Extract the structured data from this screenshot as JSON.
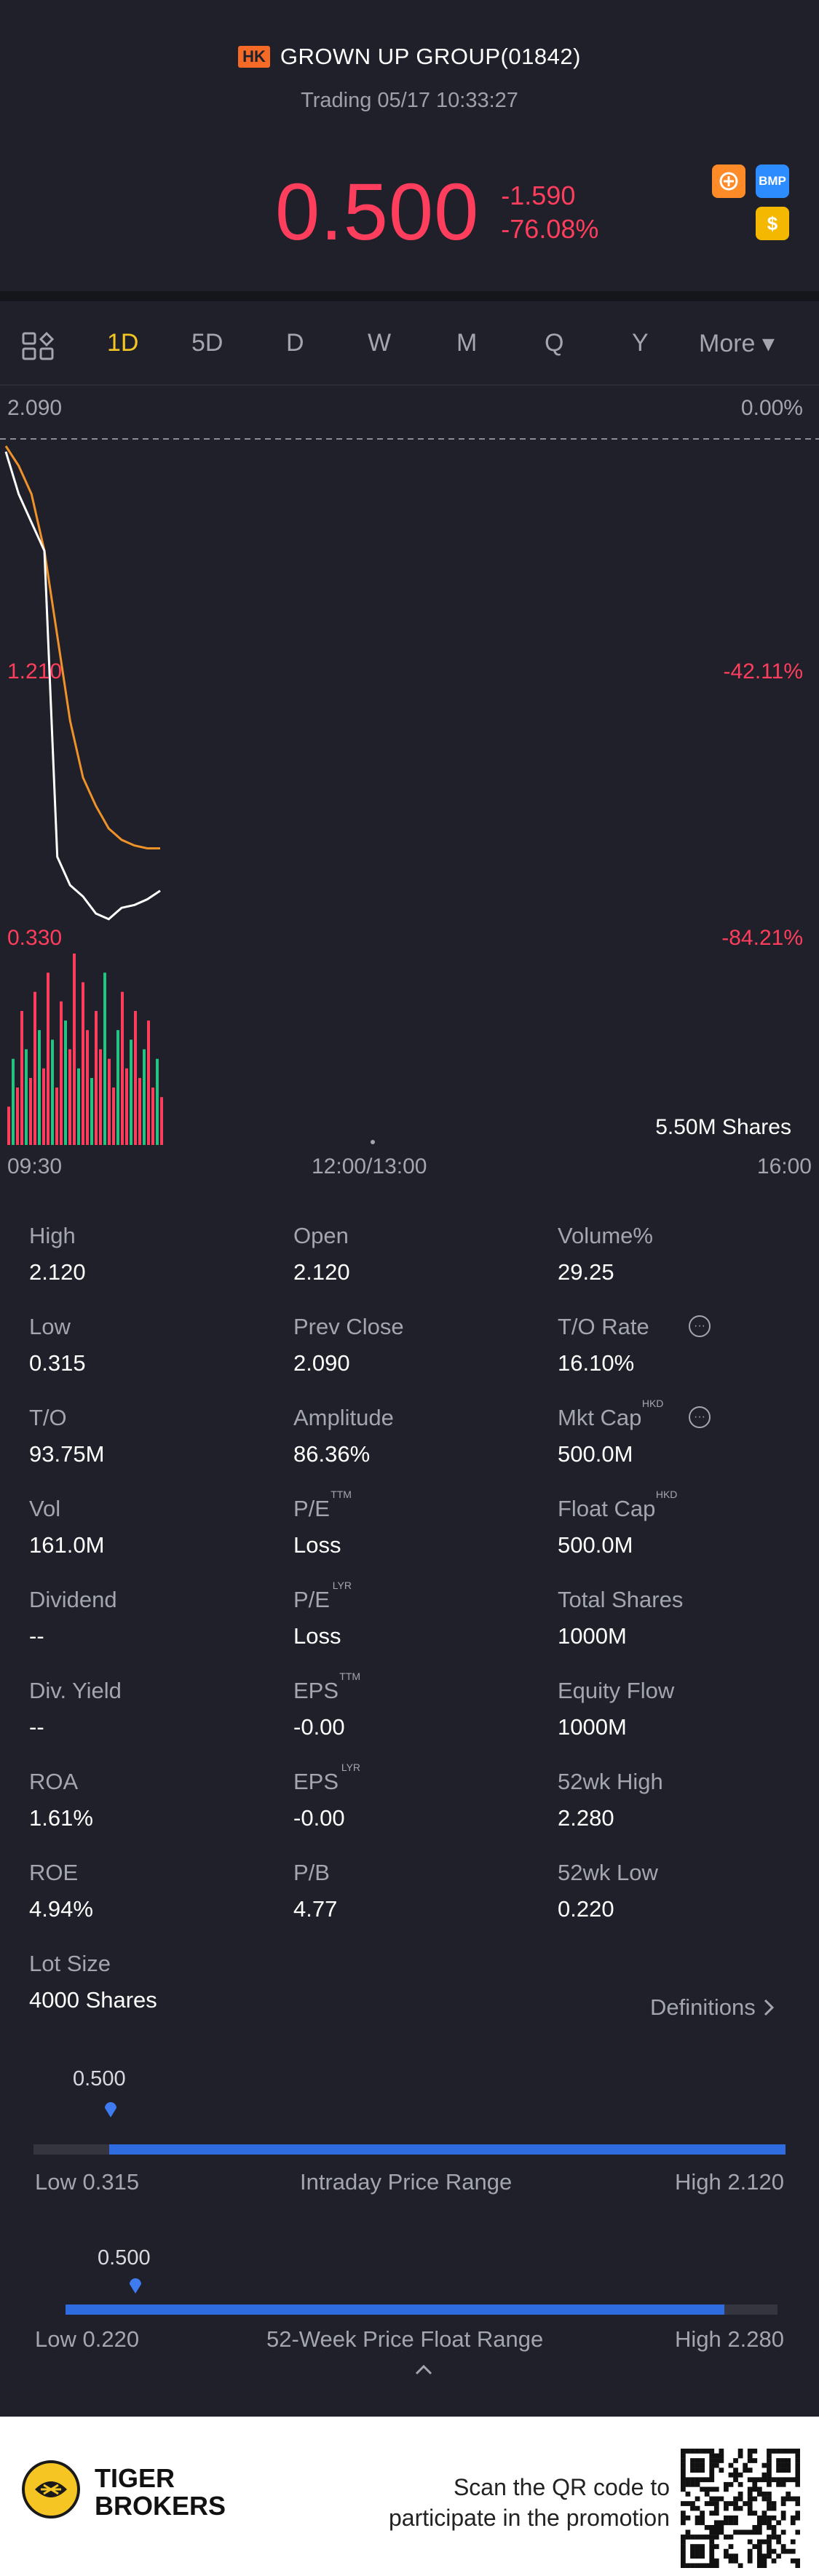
{
  "header": {
    "market_badge": "HK",
    "stock_name": "GROWN UP GROUP(01842)",
    "trading_status": "Trading 05/17 10:33:27",
    "price": "0.500",
    "change": "-1.590",
    "change_pct": "-76.08%",
    "icons": [
      "sparkle-icon",
      "bmp-icon",
      "dollar-icon"
    ],
    "bmp_label": "BMP",
    "dollar_label": "$"
  },
  "tabs": {
    "items": [
      "1D",
      "5D",
      "D",
      "W",
      "M",
      "Q",
      "Y"
    ],
    "active": "1D",
    "more_label": "More ▾"
  },
  "chart": {
    "price_top": "2.090",
    "pct_top": "0.00%",
    "price_mid": "1.210",
    "pct_mid": "-42.11%",
    "price_low": "0.330",
    "pct_low": "-84.21%",
    "volume_label": "5.50M Shares",
    "time_start": "09:30",
    "time_mid": "12:00/13:00",
    "time_end": "16:00",
    "colors": {
      "price_line": "#ffffff",
      "avg_line": "#f0922a",
      "up": "#26c281",
      "down": "#ff3d5c"
    }
  },
  "chart_data": {
    "type": "line",
    "title": "",
    "ylim": [
      0.33,
      2.09
    ],
    "x_range": [
      "09:30",
      "16:00"
    ],
    "series": [
      {
        "values": [
          2.05,
          1.9,
          1.8,
          1.7,
          0.62,
          0.52,
          0.48,
          0.42,
          0.4,
          0.44,
          0.45,
          0.47,
          0.5
        ]
      },
      {
        "values": [
          2.07,
          2.0,
          1.9,
          1.7,
          1.4,
          1.1,
          0.9,
          0.8,
          0.72,
          0.68,
          0.66,
          0.65,
          0.65
        ]
      }
    ]
  },
  "stats": [
    {
      "label": "High",
      "value": "2.120"
    },
    {
      "label": "Open",
      "value": "2.120"
    },
    {
      "label": "Volume%",
      "value": "29.25"
    },
    {
      "label": "Low",
      "value": "0.315"
    },
    {
      "label": "Prev Close",
      "value": "2.090"
    },
    {
      "label": "T/O Rate",
      "value": "16.10%"
    },
    {
      "label": "T/O",
      "value": "93.75M"
    },
    {
      "label": "Amplitude",
      "value": "86.36%"
    },
    {
      "label": "Mkt Cap",
      "value": "500.0M",
      "sup": "HKD"
    },
    {
      "label": "Vol",
      "value": "161.0M"
    },
    {
      "label": "P/E",
      "value": "Loss",
      "sup": "TTM"
    },
    {
      "label": "Float Cap",
      "value": "500.0M",
      "sup": "HKD"
    },
    {
      "label": "Dividend",
      "value": "--"
    },
    {
      "label": "P/E",
      "value": "Loss",
      "sup": "LYR"
    },
    {
      "label": "Total Shares",
      "value": "1000M"
    },
    {
      "label": "Div. Yield",
      "value": "--"
    },
    {
      "label": "EPS",
      "value": "-0.00",
      "sup": "TTM"
    },
    {
      "label": "Equity Flow",
      "value": "1000M"
    },
    {
      "label": "ROA",
      "value": "1.61%"
    },
    {
      "label": "EPS",
      "value": "-0.00",
      "sup": "LYR"
    },
    {
      "label": "52wk High",
      "value": "2.280"
    },
    {
      "label": "ROE",
      "value": "4.94%"
    },
    {
      "label": "P/B",
      "value": "4.77"
    },
    {
      "label": "52wk Low",
      "value": "0.220"
    },
    {
      "label": "Lot Size",
      "value": "4000 Shares"
    }
  ],
  "definitions_label": "Definitions",
  "intraday_range": {
    "current": "0.500",
    "low_label": "Low 0.315",
    "title": "Intraday Price Range",
    "high_label": "High 2.120",
    "position": 0.1
  },
  "week52_range": {
    "current": "0.500",
    "low_label": "Low 0.220",
    "title": "52-Week Price Float Range",
    "high_label": "High 2.280",
    "position": 0.09
  },
  "footer": {
    "brand_line1": "TIGER",
    "brand_line2": "BROKERS",
    "promo_line1": "Scan the QR code to",
    "promo_line2": "participate in the promotion"
  }
}
